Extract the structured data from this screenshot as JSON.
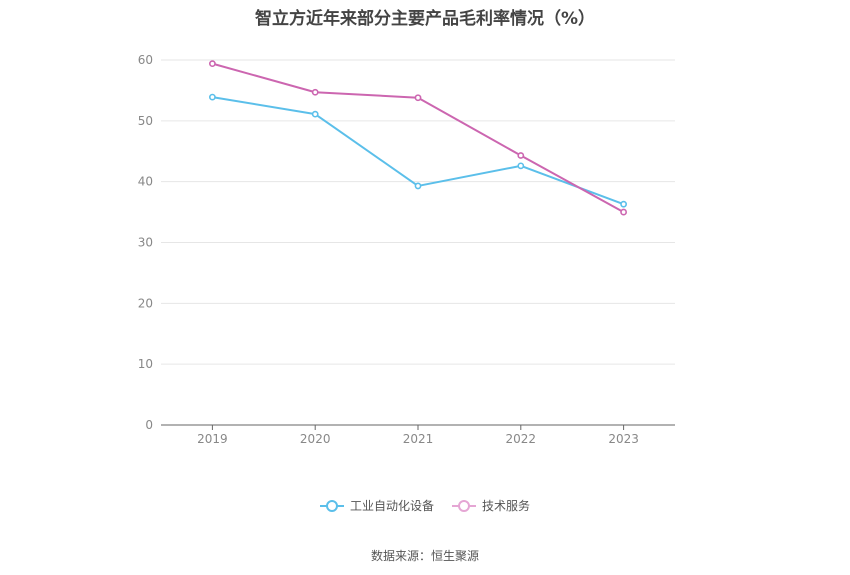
{
  "title": "智立方近年来部分主要产品毛利率情况（%）",
  "source": "数据来源：恒生聚源",
  "chart_data": {
    "type": "line",
    "x": [
      "2019",
      "2020",
      "2021",
      "2022",
      "2023"
    ],
    "ylim": [
      0,
      60
    ],
    "yticks": [
      0,
      10,
      20,
      30,
      40,
      50,
      60
    ],
    "grid": true,
    "legend_position": "bottom",
    "series": [
      {
        "name": "工业自动化设备",
        "values": [
          53.9,
          51.1,
          39.3,
          42.6,
          36.3
        ],
        "color": "#5bbfea"
      },
      {
        "name": "技术服务",
        "values": [
          59.4,
          54.7,
          53.8,
          44.3,
          35.0
        ],
        "color": "#cc66b0"
      }
    ]
  }
}
